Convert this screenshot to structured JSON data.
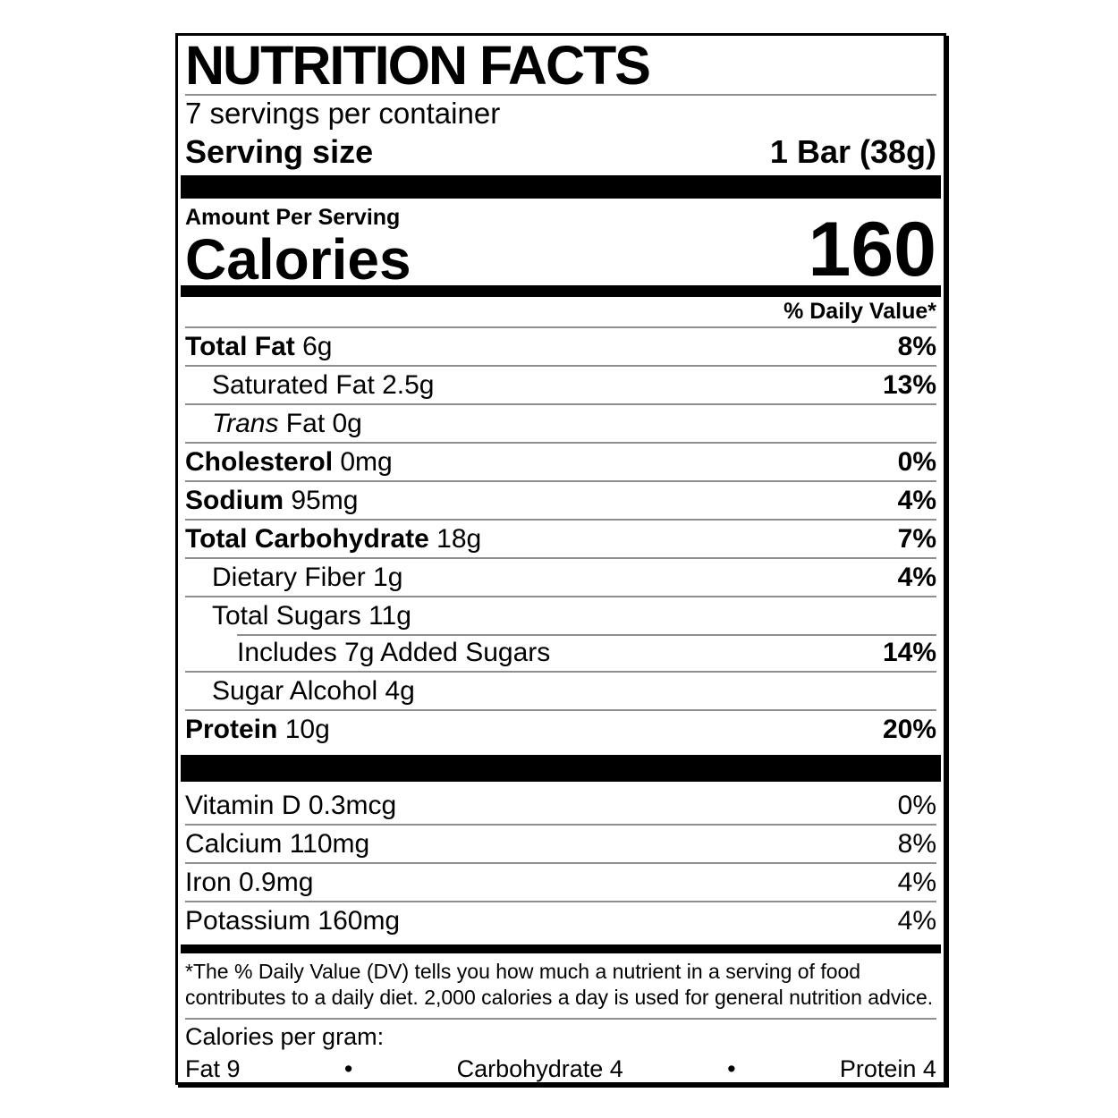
{
  "label": {
    "title": "NUTRITION FACTS",
    "servings_per_container": "7 servings per container",
    "serving_size": {
      "label": "Serving size",
      "value": "1 Bar (38g)"
    },
    "amount_per_serving": "Amount Per Serving",
    "calories": {
      "label": "Calories",
      "value": "160"
    },
    "daily_value_header": "% Daily Value*",
    "nutrients": [
      {
        "bold": "Total Fat",
        "regular": " 6g",
        "dv": "8%",
        "dv_bold": true,
        "indent": 0
      },
      {
        "regular": "Saturated Fat 2.5g",
        "dv": "13%",
        "dv_bold": true,
        "indent": 1
      },
      {
        "italic": "Trans",
        "regular": " Fat 0g",
        "dv": "",
        "indent": 1
      },
      {
        "bold": "Cholesterol",
        "regular": " 0mg",
        "dv": "0%",
        "dv_bold": true,
        "indent": 0
      },
      {
        "bold": "Sodium",
        "regular": " 95mg",
        "dv": "4%",
        "dv_bold": true,
        "indent": 0
      },
      {
        "bold": "Total Carbohydrate",
        "regular": " 18g",
        "dv": "7%",
        "dv_bold": true,
        "indent": 0
      },
      {
        "regular": "Dietary Fiber 1g",
        "dv": "4%",
        "dv_bold": true,
        "indent": 1
      },
      {
        "regular": "Total Sugars 11g",
        "dv": "",
        "indent": 1
      },
      {
        "regular": "Includes 7g Added Sugars",
        "dv": "14%",
        "dv_bold": true,
        "indent": 2,
        "sep": "indent"
      },
      {
        "regular": "Sugar Alcohol 4g",
        "dv": "",
        "indent": 1
      },
      {
        "bold": "Protein",
        "regular": " 10g",
        "dv": "20%",
        "dv_bold": true,
        "indent": 0
      }
    ],
    "micronutrients": [
      {
        "text": "Vitamin D 0.3mcg",
        "dv": "0%"
      },
      {
        "text": "Calcium 110mg",
        "dv": "8%"
      },
      {
        "text": "Iron 0.9mg",
        "dv": "4%"
      },
      {
        "text": "Potassium 160mg",
        "dv": "4%"
      }
    ],
    "footnote": "*The % Daily Value (DV) tells you how much a nutrient in a serving of food contributes to a daily diet. 2,000 calories a day is used for general nutrition advice.",
    "calories_per_gram": {
      "label": "Calories per gram:",
      "items": [
        "Fat 9",
        "Carbohydrate 4",
        "Protein 4"
      ],
      "bullet": "•"
    },
    "colors": {
      "text": "#000000",
      "bar": "#000000",
      "separator": "#8e8e8e",
      "background": "#ffffff"
    }
  }
}
